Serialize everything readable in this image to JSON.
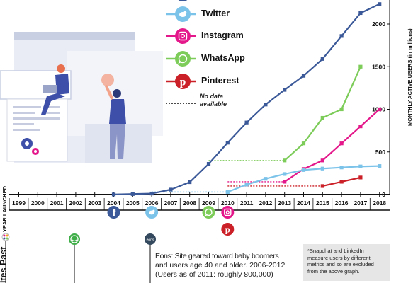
{
  "chart_data": {
    "type": "line",
    "xlabel": "YEAR LAUNCHED",
    "ylabel": "MONTHLY ACTIVE USERS (in millions)",
    "x": [
      1999,
      2000,
      2001,
      2002,
      2003,
      2004,
      2005,
      2006,
      2007,
      2008,
      2009,
      2010,
      2011,
      2012,
      2013,
      2014,
      2015,
      2016,
      2017,
      2018
    ],
    "yticks": [
      0,
      500,
      1000,
      1500,
      2000
    ],
    "ylim": [
      0,
      2250
    ],
    "grid": false,
    "legend_position": "top",
    "series": [
      {
        "name": "Facebook",
        "color": "#3b5998",
        "icon": "facebook-icon",
        "points": [
          [
            2004,
            1
          ],
          [
            2005,
            6
          ],
          [
            2006,
            12
          ],
          [
            2007,
            58
          ],
          [
            2008,
            145
          ],
          [
            2009,
            360
          ],
          [
            2010,
            608
          ],
          [
            2011,
            845
          ],
          [
            2012,
            1056
          ],
          [
            2013,
            1228
          ],
          [
            2014,
            1393
          ],
          [
            2015,
            1591
          ],
          [
            2016,
            1860
          ],
          [
            2017,
            2129
          ],
          [
            2018,
            2234
          ]
        ]
      },
      {
        "name": "Twitter",
        "color": "#7cc3ea",
        "icon": "twitter-icon",
        "points": [
          [
            2010,
            30
          ],
          [
            2011,
            117
          ],
          [
            2012,
            185
          ],
          [
            2013,
            241
          ],
          [
            2014,
            288
          ],
          [
            2015,
            305
          ],
          [
            2016,
            318
          ],
          [
            2017,
            330
          ],
          [
            2018,
            335
          ]
        ],
        "no_data_range": [
          2006,
          2010
        ]
      },
      {
        "name": "Instagram",
        "color": "#e4188b",
        "icon": "instagram-icon",
        "points": [
          [
            2013,
            150
          ],
          [
            2014,
            300
          ],
          [
            2015,
            400
          ],
          [
            2016,
            600
          ],
          [
            2017,
            800
          ],
          [
            2018,
            1000
          ]
        ],
        "no_data_range": [
          2010,
          2013
        ]
      },
      {
        "name": "WhatsApp",
        "color": "#7dcc5a",
        "icon": "whatsapp-icon",
        "points": [
          [
            2013,
            400
          ],
          [
            2014,
            600
          ],
          [
            2015,
            900
          ],
          [
            2016,
            1000
          ],
          [
            2017,
            1500
          ]
        ],
        "no_data_range": [
          2009,
          2013
        ]
      },
      {
        "name": "Pinterest",
        "color": "#cb2027",
        "icon": "pinterest-icon",
        "points": [
          [
            2015,
            100
          ],
          [
            2016,
            150
          ],
          [
            2017,
            200
          ]
        ],
        "no_data_range": [
          2010,
          2015
        ]
      }
    ],
    "no_data_label": "No data available",
    "launch_icons": [
      {
        "year": 2004,
        "icon": "facebook-icon"
      },
      {
        "year": 2006,
        "icon": "twitter-icon"
      },
      {
        "year": 2009,
        "icon": "whatsapp-icon"
      },
      {
        "year": 2010,
        "icon": "instagram-icon"
      },
      {
        "year": 2010,
        "icon": "pinterest-icon"
      }
    ]
  },
  "sidebar_title": "ites Past",
  "eons_text": {
    "title": "Eons: Site geared toward baby boomers",
    "line2": "and users age 40 and older. 2006-2012",
    "line3": "(Users as of 2011: roughly 800,000)"
  },
  "footnote": "*Snapchat and LinkedIn measure users by different metrics and so are excluded from the above graph.",
  "colors": {
    "axis": "#111111",
    "facebook": "#3b5998",
    "twitter": "#7cc3ea",
    "instagram": "#e4188b",
    "whatsapp": "#7dcc5a",
    "pinterest": "#cb2027"
  }
}
